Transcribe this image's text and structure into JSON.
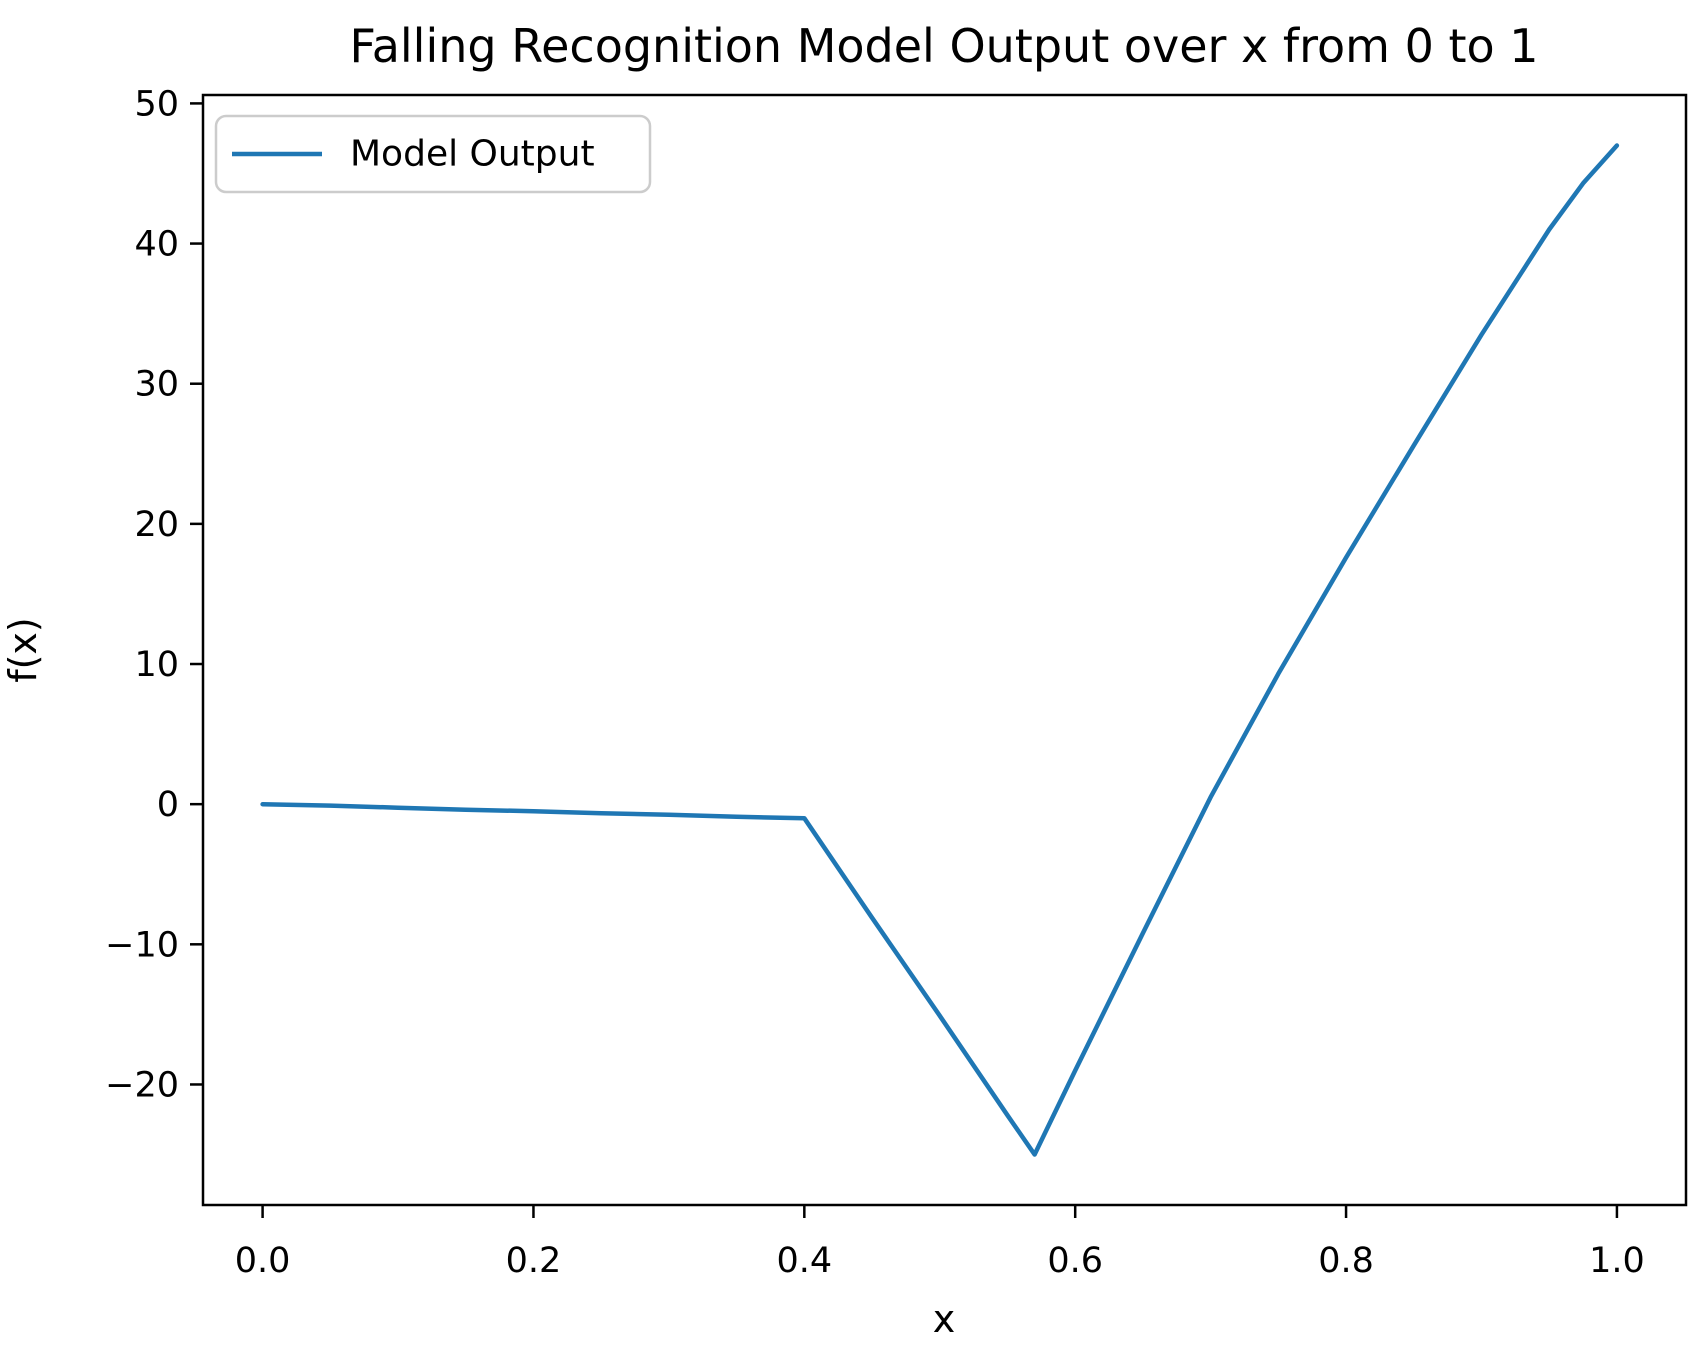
{
  "figure": {
    "background": "#ffffff"
  },
  "colors": {
    "line": "#1f77b4",
    "spine": "#000000",
    "tick": "#000000",
    "text": "#000000",
    "legend_border": "#cccccc",
    "legend_background": "#ffffff"
  },
  "chart_data": {
    "type": "line",
    "title": "Falling Recognition Model Output over x from 0 to 1",
    "xlabel": "x",
    "ylabel": "f(x)",
    "legend": [
      "Model Output"
    ],
    "legend_position": "upper left",
    "grid": false,
    "xlim": [
      -0.044,
      1.051
    ],
    "ylim": [
      -28.6,
      50.6
    ],
    "xticks": {
      "values": [
        0.0,
        0.2,
        0.4,
        0.6,
        0.8,
        1.0
      ],
      "labels": [
        "0.0",
        "0.2",
        "0.4",
        "0.6",
        "0.8",
        "1.0"
      ]
    },
    "yticks": {
      "values": [
        50,
        40,
        30,
        20,
        10,
        0,
        -10,
        -20
      ],
      "labels": [
        "50",
        "40",
        "30",
        "20",
        "10",
        "0",
        "−10",
        "−20"
      ]
    },
    "series": [
      {
        "name": "Model Output",
        "color": "#1f77b4",
        "x": [
          0.0,
          0.05,
          0.1,
          0.15,
          0.2,
          0.25,
          0.3,
          0.35,
          0.4,
          0.45,
          0.5,
          0.55,
          0.57,
          0.6,
          0.65,
          0.7,
          0.75,
          0.8,
          0.85,
          0.9,
          0.95,
          0.975,
          1.0
        ],
        "y": [
          0.0,
          -0.1,
          -0.25,
          -0.4,
          -0.5,
          -0.65,
          -0.75,
          -0.9,
          -1.0,
          -8.1,
          -15.1,
          -22.2,
          -25.0,
          -19.0,
          -9.2,
          0.5,
          9.3,
          17.6,
          25.6,
          33.5,
          41.0,
          44.3,
          47.0
        ]
      }
    ]
  }
}
